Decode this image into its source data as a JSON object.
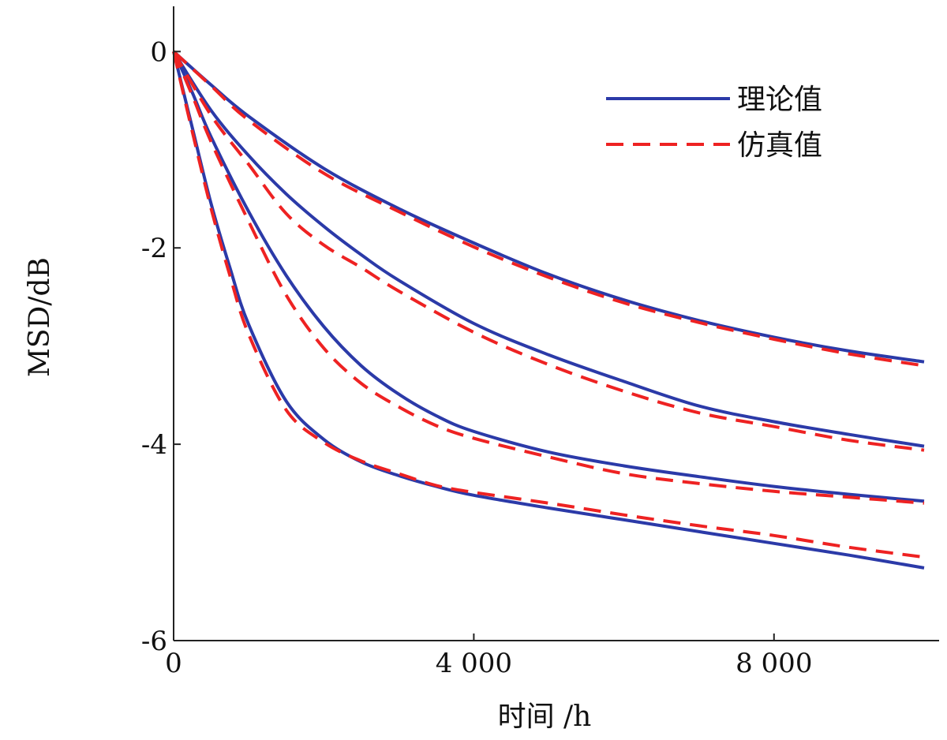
{
  "chart_data": {
    "type": "line",
    "xlabel": "时间 /h",
    "ylabel": "MSD/dB",
    "xlim": [
      0,
      10200
    ],
    "ylim": [
      -6,
      0.3
    ],
    "xticks": [
      0,
      4000,
      8000
    ],
    "xtick_labels": [
      "0",
      "4 000",
      "8 000"
    ],
    "yticks": [
      0,
      -2,
      -4,
      -6
    ],
    "ytick_labels": [
      "0",
      "-2",
      "-4",
      "-6"
    ],
    "grid": false,
    "legend_position": "top-right",
    "legend": [
      {
        "label": "理论值",
        "style": "solid",
        "color": "#2b3aa8"
      },
      {
        "label": "仿真值",
        "style": "dashed",
        "color": "#ee2222"
      }
    ],
    "series": [
      {
        "group": 1,
        "kind": "theory",
        "x": [
          0,
          500,
          1000,
          2000,
          3000,
          4000,
          5000,
          6000,
          7000,
          8000,
          9000,
          10000
        ],
        "y": [
          0,
          -0.34,
          -0.66,
          -1.19,
          -1.6,
          -1.95,
          -2.27,
          -2.53,
          -2.74,
          -2.91,
          -3.05,
          -3.16
        ]
      },
      {
        "group": 1,
        "kind": "simulation",
        "x": [
          0,
          500,
          1000,
          2000,
          3000,
          4000,
          5000,
          6000,
          7000,
          8000,
          9000,
          10000
        ],
        "y": [
          0,
          -0.35,
          -0.7,
          -1.24,
          -1.63,
          -1.99,
          -2.3,
          -2.56,
          -2.76,
          -2.93,
          -3.08,
          -3.2
        ]
      },
      {
        "group": 2,
        "kind": "theory",
        "x": [
          0,
          500,
          1000,
          1500,
          2000,
          2500,
          3000,
          4000,
          5000,
          6000,
          7000,
          8000,
          9000,
          10000
        ],
        "y": [
          0,
          -0.6,
          -1.06,
          -1.45,
          -1.78,
          -2.07,
          -2.33,
          -2.77,
          -3.09,
          -3.36,
          -3.61,
          -3.77,
          -3.9,
          -4.02
        ]
      },
      {
        "group": 2,
        "kind": "simulation",
        "x": [
          0,
          500,
          1000,
          1500,
          2000,
          2500,
          3000,
          4000,
          5000,
          6000,
          7000,
          8000,
          9000,
          10000
        ],
        "y": [
          0,
          -0.65,
          -1.15,
          -1.65,
          -1.97,
          -2.2,
          -2.44,
          -2.86,
          -3.19,
          -3.46,
          -3.68,
          -3.82,
          -3.96,
          -4.06
        ]
      },
      {
        "group": 3,
        "kind": "theory",
        "x": [
          0,
          250,
          500,
          1000,
          1500,
          2000,
          2500,
          3000,
          3500,
          4000,
          5000,
          6000,
          7000,
          8000,
          9000,
          10000
        ],
        "y": [
          0,
          -0.42,
          -0.87,
          -1.63,
          -2.28,
          -2.8,
          -3.2,
          -3.49,
          -3.71,
          -3.87,
          -4.08,
          -4.22,
          -4.33,
          -4.43,
          -4.51,
          -4.58
        ]
      },
      {
        "group": 3,
        "kind": "simulation",
        "x": [
          0,
          250,
          500,
          1000,
          1500,
          2000,
          2500,
          3000,
          3500,
          4000,
          5000,
          6000,
          7000,
          8000,
          9000,
          10000
        ],
        "y": [
          0,
          -0.45,
          -0.92,
          -1.73,
          -2.48,
          -3.02,
          -3.38,
          -3.62,
          -3.81,
          -3.94,
          -4.13,
          -4.3,
          -4.4,
          -4.48,
          -4.54,
          -4.6
        ]
      },
      {
        "group": 4,
        "kind": "theory",
        "x": [
          0,
          250,
          500,
          750,
          1000,
          1500,
          2000,
          2500,
          3000,
          3500,
          4000,
          5000,
          6000,
          7000,
          8000,
          9000,
          10000
        ],
        "y": [
          0,
          -0.78,
          -1.55,
          -2.2,
          -2.78,
          -3.56,
          -3.95,
          -4.18,
          -4.32,
          -4.43,
          -4.52,
          -4.65,
          -4.77,
          -4.89,
          -5.01,
          -5.13,
          -5.26
        ]
      },
      {
        "group": 4,
        "kind": "simulation",
        "x": [
          0,
          250,
          500,
          750,
          1000,
          1500,
          2000,
          2500,
          3000,
          3500,
          4000,
          5000,
          6000,
          7000,
          8000,
          9000,
          10000
        ],
        "y": [
          0,
          -0.82,
          -1.6,
          -2.28,
          -2.88,
          -3.65,
          -3.98,
          -4.17,
          -4.3,
          -4.42,
          -4.49,
          -4.6,
          -4.72,
          -4.83,
          -4.93,
          -5.05,
          -5.15
        ]
      }
    ]
  }
}
